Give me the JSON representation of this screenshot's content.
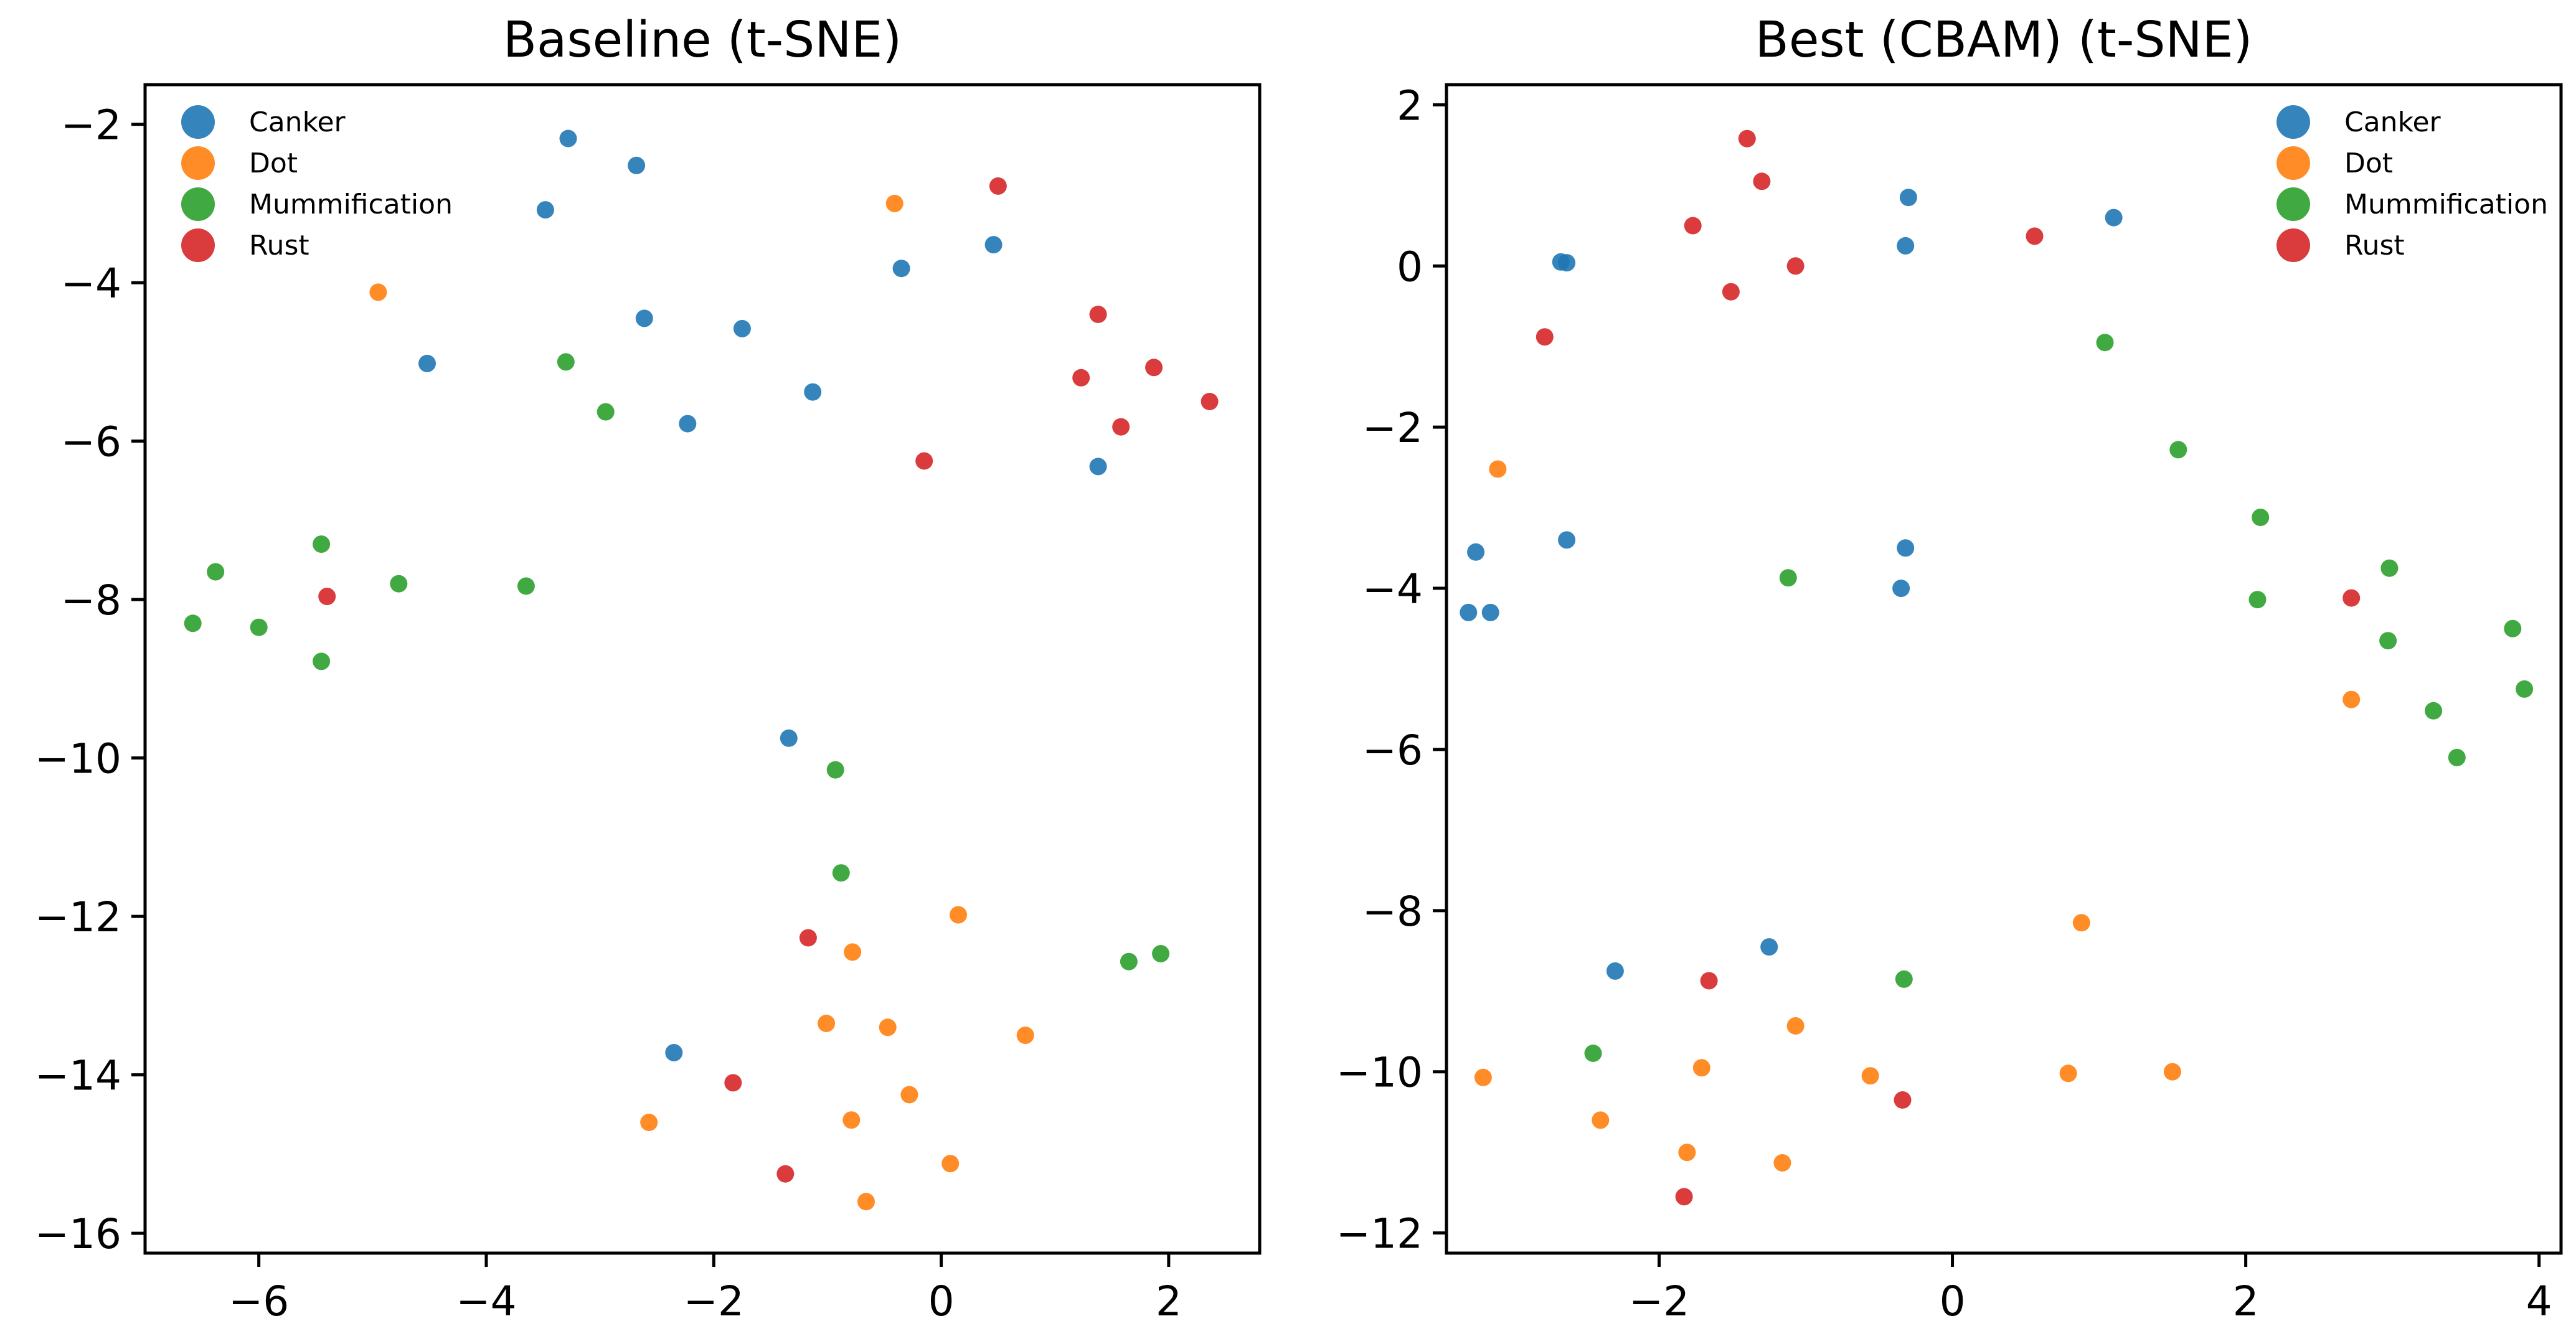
{
  "figure": {
    "background": "#ffffff"
  },
  "chart_data": [
    {
      "type": "scatter",
      "title": "Baseline (t-SNE)",
      "xlabel": "",
      "ylabel": "",
      "xlim": [
        -7.0,
        2.8
      ],
      "ylim": [
        -16.25,
        -1.5
      ],
      "xticks": [
        -6,
        -4,
        -2,
        0,
        2
      ],
      "yticks": [
        -16,
        -14,
        -12,
        -10,
        -8,
        -6,
        -4,
        -2
      ],
      "grid": false,
      "legend": "top-left",
      "series": [
        {
          "name": "Canker",
          "color": "#1f77b4",
          "points": [
            [
              -3.28,
              -2.18
            ],
            [
              -2.68,
              -2.52
            ],
            [
              -3.48,
              -3.08
            ],
            [
              0.46,
              -3.52
            ],
            [
              -0.35,
              -3.82
            ],
            [
              -2.61,
              -4.45
            ],
            [
              -1.75,
              -4.58
            ],
            [
              -4.52,
              -5.02
            ],
            [
              -1.13,
              -5.38
            ],
            [
              -2.23,
              -5.78
            ],
            [
              1.38,
              -6.32
            ],
            [
              -1.34,
              -9.75
            ],
            [
              -2.35,
              -13.72
            ]
          ]
        },
        {
          "name": "Dot",
          "color": "#ff7f0e",
          "points": [
            [
              -0.41,
              -3.0
            ],
            [
              -4.95,
              -4.12
            ],
            [
              0.15,
              -11.98
            ],
            [
              -0.78,
              -12.45
            ],
            [
              -1.01,
              -13.35
            ],
            [
              -0.47,
              -13.4
            ],
            [
              0.74,
              -13.5
            ],
            [
              -0.28,
              -14.25
            ],
            [
              -2.57,
              -14.6
            ],
            [
              -0.79,
              -14.57
            ],
            [
              0.08,
              -15.12
            ],
            [
              -0.66,
              -15.6
            ]
          ]
        },
        {
          "name": "Mummification",
          "color": "#2ca02c",
          "points": [
            [
              -3.3,
              -5.0
            ],
            [
              -2.95,
              -5.63
            ],
            [
              -5.45,
              -7.3
            ],
            [
              -6.38,
              -7.65
            ],
            [
              -4.77,
              -7.8
            ],
            [
              -3.65,
              -7.83
            ],
            [
              -6.58,
              -8.3
            ],
            [
              -6.0,
              -8.35
            ],
            [
              -5.45,
              -8.78
            ],
            [
              -0.93,
              -10.15
            ],
            [
              -0.88,
              -11.45
            ],
            [
              1.65,
              -12.57
            ],
            [
              1.93,
              -12.47
            ]
          ]
        },
        {
          "name": "Rust",
          "color": "#d62728",
          "points": [
            [
              0.5,
              -2.78
            ],
            [
              1.38,
              -4.4
            ],
            [
              1.87,
              -5.07
            ],
            [
              1.23,
              -5.2
            ],
            [
              2.36,
              -5.5
            ],
            [
              1.58,
              -5.82
            ],
            [
              -0.15,
              -6.25
            ],
            [
              -5.4,
              -7.96
            ],
            [
              -1.17,
              -12.27
            ],
            [
              -1.83,
              -14.1
            ],
            [
              -1.37,
              -15.25
            ]
          ]
        }
      ]
    },
    {
      "type": "scatter",
      "title": "Best (CBAM) (t-SNE)",
      "xlabel": "",
      "ylabel": "",
      "xlim": [
        -3.45,
        4.15
      ],
      "ylim": [
        -12.25,
        2.25
      ],
      "xticks": [
        -2,
        0,
        2,
        4
      ],
      "yticks": [
        -12,
        -10,
        -8,
        -6,
        -4,
        -2,
        0,
        2
      ],
      "grid": false,
      "legend": "top-right",
      "series": [
        {
          "name": "Canker",
          "color": "#1f77b4",
          "points": [
            [
              -0.3,
              0.85
            ],
            [
              1.1,
              0.6
            ],
            [
              -0.32,
              0.25
            ],
            [
              -2.67,
              0.05
            ],
            [
              -2.63,
              0.04
            ],
            [
              -3.25,
              -3.55
            ],
            [
              -2.63,
              -3.4
            ],
            [
              -0.32,
              -3.5
            ],
            [
              -0.35,
              -4.0
            ],
            [
              -3.3,
              -4.3
            ],
            [
              -3.15,
              -4.3
            ],
            [
              -1.25,
              -8.45
            ],
            [
              -2.3,
              -8.75
            ]
          ]
        },
        {
          "name": "Dot",
          "color": "#ff7f0e",
          "points": [
            [
              -3.1,
              -2.52
            ],
            [
              2.72,
              -5.38
            ],
            [
              0.88,
              -8.15
            ],
            [
              -1.07,
              -9.43
            ],
            [
              -1.71,
              -9.95
            ],
            [
              -0.56,
              -10.05
            ],
            [
              0.79,
              -10.02
            ],
            [
              1.5,
              -10.0
            ],
            [
              -3.2,
              -10.07
            ],
            [
              -2.4,
              -10.6
            ],
            [
              -1.81,
              -11.0
            ],
            [
              -1.16,
              -11.13
            ]
          ]
        },
        {
          "name": "Mummification",
          "color": "#2ca02c",
          "points": [
            [
              1.04,
              -0.95
            ],
            [
              1.54,
              -2.28
            ],
            [
              2.1,
              -3.12
            ],
            [
              2.98,
              -3.75
            ],
            [
              -1.12,
              -3.87
            ],
            [
              2.08,
              -4.14
            ],
            [
              2.97,
              -4.65
            ],
            [
              3.82,
              -4.5
            ],
            [
              3.28,
              -5.52
            ],
            [
              3.9,
              -5.25
            ],
            [
              3.44,
              -6.1
            ],
            [
              -0.33,
              -8.85
            ],
            [
              -2.45,
              -9.77
            ]
          ]
        },
        {
          "name": "Rust",
          "color": "#d62728",
          "points": [
            [
              -1.4,
              1.58
            ],
            [
              -1.3,
              1.05
            ],
            [
              -1.77,
              0.5
            ],
            [
              0.56,
              0.37
            ],
            [
              -1.07,
              0.0
            ],
            [
              -1.51,
              -0.32
            ],
            [
              -2.78,
              -0.88
            ],
            [
              2.72,
              -4.12
            ],
            [
              -1.66,
              -8.87
            ],
            [
              -0.34,
              -10.35
            ],
            [
              -1.83,
              -11.55
            ]
          ]
        }
      ]
    }
  ]
}
